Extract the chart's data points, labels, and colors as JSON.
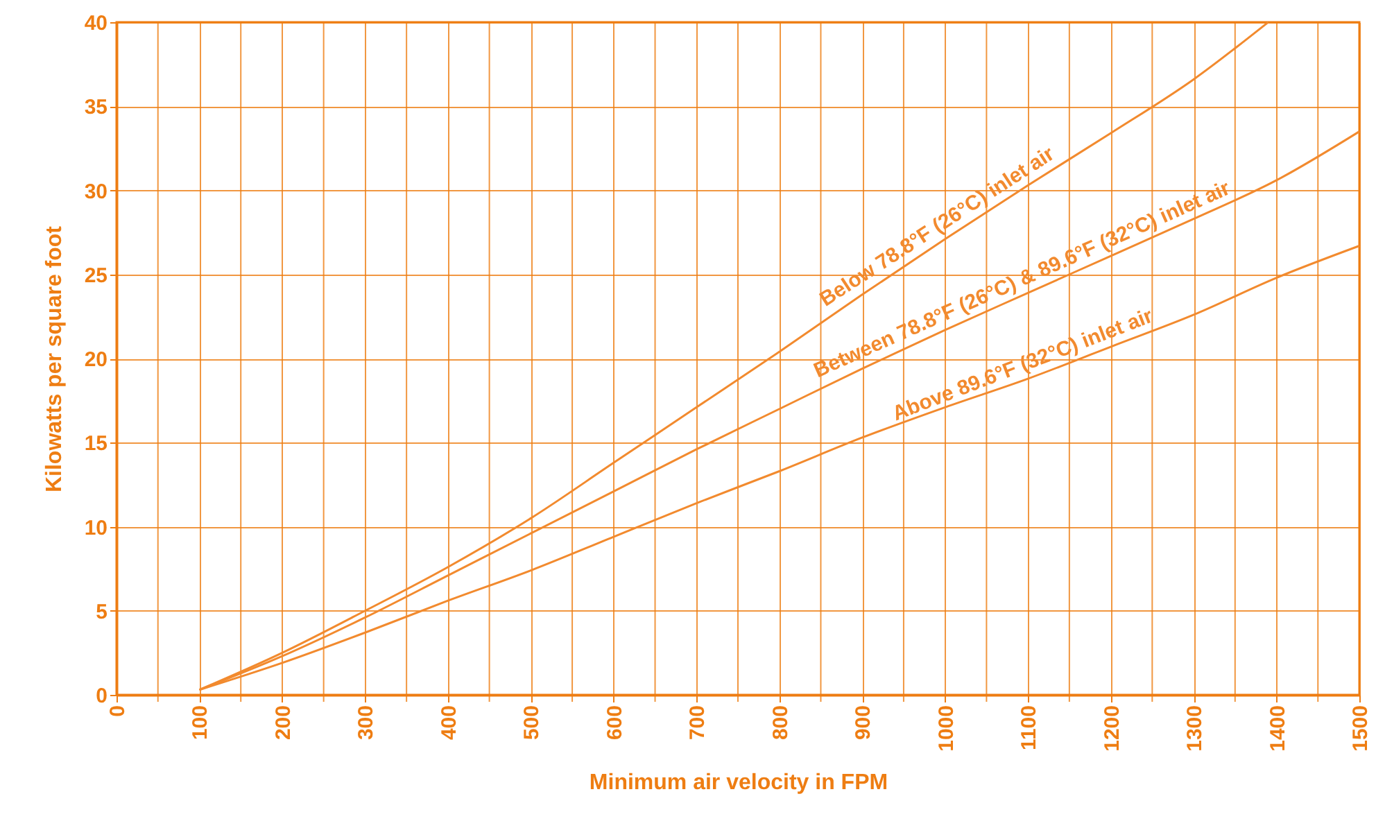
{
  "chart_data": {
    "type": "line",
    "xlabel": "Minimum air velocity in FPM",
    "ylabel": "Kilowatts per square foot",
    "xlim": [
      0,
      1500
    ],
    "ylim": [
      0,
      40
    ],
    "xticks": [
      0,
      {
        "value": 50,
        "label": null
      },
      100,
      {
        "value": 150,
        "label": null
      },
      200,
      {
        "value": 250,
        "label": null
      },
      300,
      {
        "value": 350,
        "label": null
      },
      400,
      {
        "value": 450,
        "label": null
      },
      500,
      {
        "value": 550,
        "label": null
      },
      600,
      {
        "value": 650,
        "label": null
      },
      700,
      {
        "value": 750,
        "label": null
      },
      800,
      {
        "value": 850,
        "label": null
      },
      900,
      {
        "value": 950,
        "label": null
      },
      1000,
      {
        "value": 1050,
        "label": null
      },
      1100,
      {
        "value": 1150,
        "label": null
      },
      1200,
      {
        "value": 1250,
        "label": null
      },
      1300,
      {
        "value": 1350,
        "label": null
      },
      1400,
      {
        "value": 1450,
        "label": null
      },
      1500
    ],
    "yticks": [
      0,
      5,
      10,
      15,
      20,
      25,
      30,
      35,
      40
    ],
    "grid": true,
    "marker": "none",
    "line_style": "solid",
    "series": [
      {
        "name": "Below 78.8°F (26°C) inlet air",
        "color": "#f28a2e",
        "x": [
          100,
          200,
          300,
          400,
          500,
          600,
          700,
          800,
          900,
          1000,
          1100,
          1200,
          1300,
          1390
        ],
        "values": [
          0.3,
          2.5,
          5.0,
          7.6,
          10.5,
          13.8,
          17.1,
          20.4,
          23.8,
          27.1,
          30.3,
          33.4,
          36.6,
          40
        ]
      },
      {
        "name": "Between 78.8°F (26°C) & 89.6°F (32°C) inlet air",
        "color": "#f28a2e",
        "x": [
          100,
          200,
          300,
          400,
          500,
          600,
          700,
          800,
          900,
          1000,
          1100,
          1200,
          1300,
          1400,
          1500
        ],
        "values": [
          0.3,
          2.3,
          4.6,
          7.1,
          9.6,
          12.1,
          14.6,
          17.0,
          19.4,
          21.7,
          23.9,
          26.1,
          28.3,
          30.6,
          33.5
        ]
      },
      {
        "name": "Above 89.6°F (32°C) inlet air",
        "color": "#f28a2e",
        "x": [
          100,
          200,
          300,
          400,
          500,
          600,
          700,
          800,
          900,
          1000,
          1100,
          1200,
          1300,
          1400,
          1500
        ],
        "values": [
          0.3,
          1.9,
          3.7,
          5.6,
          7.4,
          9.4,
          11.4,
          13.3,
          15.3,
          17.1,
          18.8,
          20.7,
          22.6,
          24.8,
          26.7
        ]
      }
    ]
  }
}
